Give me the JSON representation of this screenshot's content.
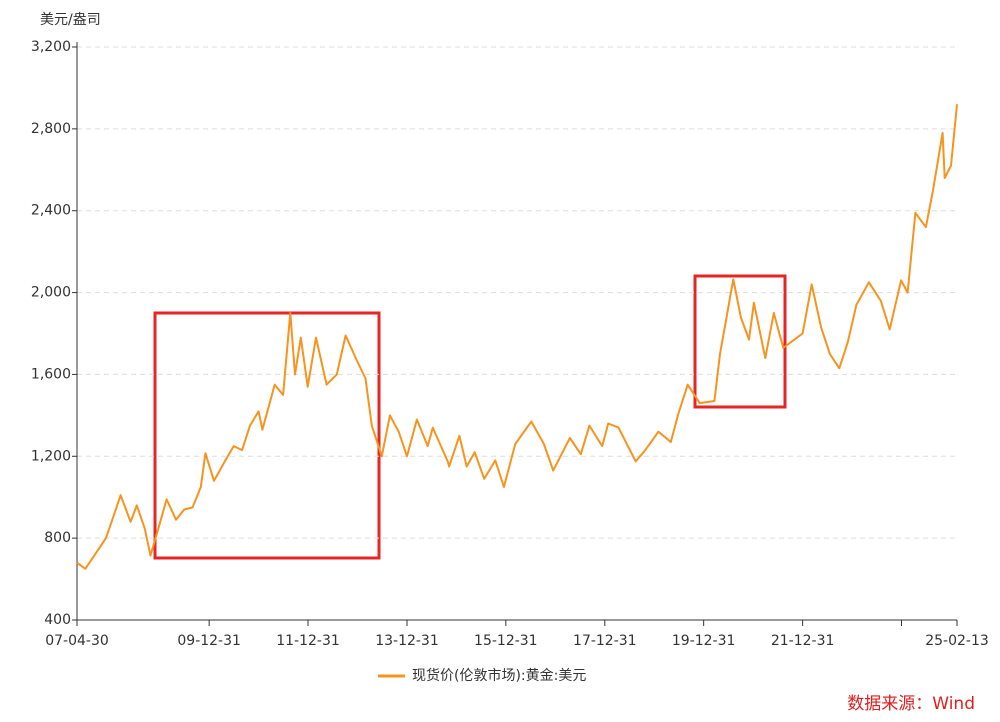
{
  "chart_data": {
    "type": "line",
    "y_axis_label": "美元/盎司",
    "source": "数据来源：Wind",
    "ylim": [
      400,
      3200
    ],
    "yticks": [
      400,
      800,
      {
        "value": 1200,
        "label": "1,200"
      },
      {
        "value": 1600,
        "label": "1,600"
      },
      {
        "value": 2000,
        "label": "2,000"
      },
      {
        "value": 2400,
        "label": "2,400"
      },
      {
        "value": 2800,
        "label": "2,800"
      },
      {
        "value": 3200,
        "label": "3,200"
      }
    ],
    "xlim": [
      "07-04-30",
      "25-02-13"
    ],
    "xticks": [
      "07-04-30",
      "09-12-31",
      "11-12-31",
      "13-12-31",
      "15-12-31",
      "17-12-31",
      "19-12-31",
      "21-12-31",
      {
        "value": "23-12-31",
        "label": null
      },
      "25-02-13"
    ],
    "grid": true,
    "legend": "bottom",
    "x": [
      "07-04-30",
      "07-06-30",
      "07-09-30",
      "07-11-30",
      "08-01-31",
      "08-03-17",
      "08-05-30",
      "08-07-15",
      "08-09-10",
      "08-10-24",
      "08-12-31",
      "09-02-20",
      "09-04-30",
      "09-06-30",
      "09-08-31",
      "09-10-30",
      "09-12-03",
      "10-02-05",
      "10-04-30",
      "10-06-30",
      "10-08-31",
      "10-10-29",
      "10-12-31",
      "11-01-28",
      "11-04-29",
      "11-06-30",
      "11-08-22",
      "11-09-26",
      "11-11-08",
      "11-12-29",
      "12-02-28",
      "12-05-16",
      "12-07-31",
      "12-10-04",
      "12-12-31",
      "13-02-28",
      "13-04-15",
      "13-06-28",
      "13-08-27",
      "13-10-31",
      "13-12-31",
      "14-03-14",
      "14-06-02",
      "14-07-10",
      "14-10-31",
      "14-11-07",
      "15-01-22",
      "15-03-17",
      "15-05-15",
      "15-07-24",
      "15-10-14",
      "15-12-17",
      "16-03-10",
      "16-07-06",
      "16-10-07",
      "16-12-15",
      "17-04-17",
      "17-07-07",
      "17-09-08",
      "17-12-12",
      "18-01-25",
      "18-04-11",
      "18-08-16",
      "18-10-26",
      "19-01-31",
      "19-05-02",
      "19-06-28",
      "19-09-04",
      "19-12-02",
      "20-03-19",
      "20-04-30",
      "20-08-06",
      "20-09-30",
      "20-11-30",
      "21-01-05",
      "21-03-30",
      "21-06-01",
      "21-08-10",
      "21-12-31",
      "22-03-08",
      "22-05-16",
      "22-07-20",
      "22-09-28",
      "22-11-30",
      "23-02-01",
      "23-05-04",
      "23-07-31",
      "23-10-05",
      "23-12-28",
      "24-02-14",
      "24-04-12",
      "24-06-28",
      "24-08-20",
      "24-10-30",
      "24-11-14",
      "24-12-31",
      "25-02-13"
    ],
    "series": [
      {
        "name": "现货价(伦敦市场):黄金:美元",
        "color": "#f7931e",
        "values": [
          680,
          650,
          740,
          800,
          920,
          1010,
          880,
          960,
          850,
          715,
          870,
          990,
          890,
          940,
          950,
          1050,
          1215,
          1080,
          1180,
          1250,
          1230,
          1350,
          1420,
          1330,
          1550,
          1500,
          1900,
          1600,
          1780,
          1540,
          1780,
          1550,
          1600,
          1790,
          1660,
          1580,
          1350,
          1200,
          1400,
          1320,
          1200,
          1380,
          1250,
          1340,
          1170,
          1150,
          1300,
          1150,
          1220,
          1090,
          1180,
          1050,
          1260,
          1370,
          1260,
          1130,
          1290,
          1210,
          1350,
          1250,
          1360,
          1340,
          1175,
          1230,
          1320,
          1270,
          1410,
          1550,
          1460,
          1470,
          1700,
          2065,
          1880,
          1770,
          1950,
          1680,
          1900,
          1730,
          1800,
          2040,
          1830,
          1700,
          1630,
          1760,
          1940,
          2050,
          1960,
          1820,
          2060,
          2000,
          2390,
          2320,
          2500,
          2780,
          2560,
          2620,
          2920
        ]
      }
    ]
  }
}
